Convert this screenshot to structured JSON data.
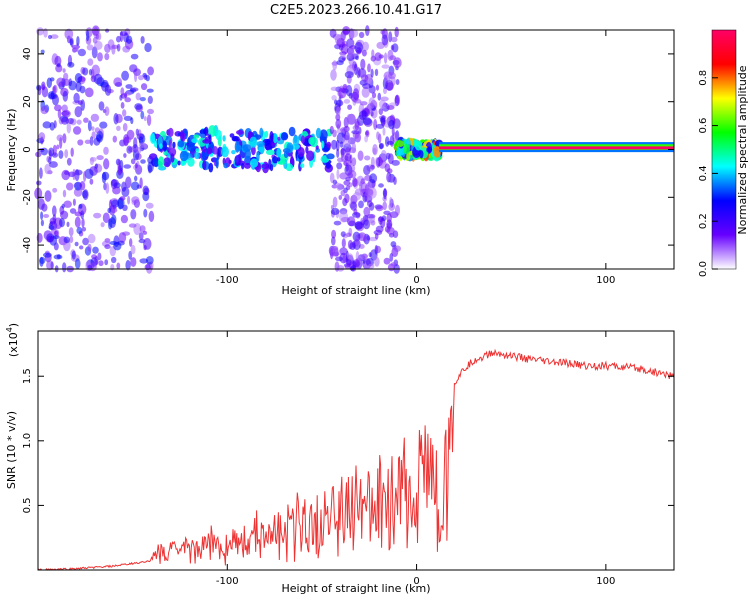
{
  "title": "C2E5.2023.266.10.41.G17",
  "chart_data": [
    {
      "type": "heatmap",
      "xlabel": "Height of straight line (km)",
      "ylabel": "Frequency (Hz)",
      "xlim": [
        -200,
        136
      ],
      "ylim": [
        -50,
        50
      ],
      "x_ticks": [
        -100,
        0,
        100
      ],
      "x_tick_labels": [
        "-100",
        "0",
        "100"
      ],
      "y_ticks": [
        -40,
        -20,
        0,
        20,
        40
      ],
      "y_tick_labels": [
        "-40",
        "-20",
        "0",
        "20",
        "40"
      ],
      "colorbar": {
        "label": "Normalized spectral amplitude",
        "range": [
          0,
          1
        ],
        "ticks": [
          0.0,
          0.2,
          0.4,
          0.6,
          0.8
        ],
        "tick_labels": [
          "0.0",
          "0.2",
          "0.4",
          "0.6",
          "0.8"
        ],
        "colors": [
          "#ffffff",
          "#6600ff",
          "#0000ff",
          "#00ffff",
          "#00ff00",
          "#ffff00",
          "#ff0000",
          "#ff0066"
        ]
      },
      "regions": [
        {
          "x": [
            -200,
            -140
          ],
          "freq_center": 0,
          "freq_spread": 50,
          "amplitude": 0.25,
          "kind": "noise"
        },
        {
          "x": [
            -140,
            -45
          ],
          "freq_center": 0,
          "freq_spread": 8,
          "amplitude": 0.4,
          "kind": "band"
        },
        {
          "x": [
            -45,
            -10
          ],
          "freq_center": 0,
          "freq_spread": 50,
          "amplitude": 0.2,
          "kind": "noise"
        },
        {
          "x": [
            -10,
            12
          ],
          "freq_center": 0,
          "freq_spread": 3,
          "amplitude": 0.7,
          "kind": "band"
        },
        {
          "x": [
            12,
            136
          ],
          "freq_center": 1,
          "freq_spread": 1.5,
          "amplitude": 1.0,
          "kind": "tone"
        }
      ],
      "grid": false
    },
    {
      "type": "line",
      "xlabel": "Height of straight line (km)",
      "ylabel": "SNR (10 * v/v)",
      "y_multiplier_label": "(x10",
      "y_multiplier_exp": "4",
      "y_multiplier_close": ")",
      "xlim": [
        -200,
        136
      ],
      "ylim": [
        0,
        1.85
      ],
      "x_ticks": [
        -100,
        0,
        100
      ],
      "x_tick_labels": [
        "-100",
        "0",
        "100"
      ],
      "y_ticks": [
        0.5,
        1.0,
        1.5
      ],
      "y_tick_labels": [
        "0.5",
        "1.0",
        "1.5"
      ],
      "line_color": "#ee3333",
      "series": [
        {
          "x": [
            -200,
            -180,
            -160,
            -150,
            -140,
            -130,
            -120,
            -110,
            -100,
            -90,
            -80,
            -70,
            -60,
            -50,
            -40,
            -30,
            -20,
            -10,
            0,
            10,
            20,
            25,
            30,
            40,
            50,
            60,
            70,
            80,
            90,
            100,
            110,
            120,
            130,
            136
          ],
          "values": [
            0.0,
            0.01,
            0.03,
            0.05,
            0.07,
            0.1,
            0.15,
            0.2,
            0.25,
            0.3,
            0.36,
            0.42,
            0.5,
            0.55,
            0.62,
            0.7,
            0.78,
            0.88,
            1.0,
            1.2,
            1.45,
            1.55,
            1.62,
            1.68,
            1.66,
            1.63,
            1.61,
            1.6,
            1.58,
            1.58,
            1.57,
            1.55,
            1.52,
            1.5
          ]
        }
      ],
      "grid": false
    }
  ]
}
